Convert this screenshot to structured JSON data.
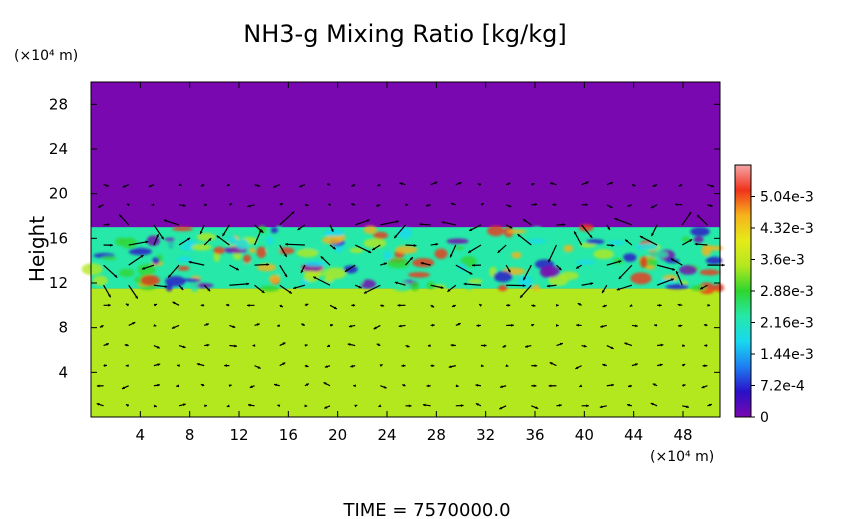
{
  "chart_data": {
    "type": "heatmap",
    "title": "NH3-g Mixing Ratio [kg/kg]",
    "ylabel": "Height",
    "yunit": "(×10⁴ m)",
    "xunit": "(×10⁴ m)",
    "x_ticks": [
      4,
      8,
      12,
      16,
      20,
      24,
      28,
      32,
      36,
      40,
      44,
      48
    ],
    "y_ticks": [
      4,
      8,
      12,
      16,
      20,
      24,
      28
    ],
    "xlim": [
      0,
      51
    ],
    "ylim": [
      0,
      30
    ],
    "colorbar": {
      "ticks": [
        "5.04e-3",
        "4.32e-3",
        "3.6e-3",
        "2.88e-3",
        "2.16e-3",
        "1.44e-3",
        "7.2e-4",
        "0"
      ],
      "tick_values": [
        0.00504,
        0.00432,
        0.0036,
        0.00288,
        0.00216,
        0.00144,
        0.00072,
        0
      ],
      "range": [
        0,
        0.00576
      ],
      "colors": [
        "#7a08b0",
        "#2a10c8",
        "#1e7ef2",
        "#17d9f0",
        "#26e8a8",
        "#2ed62e",
        "#b4e81e",
        "#e6ea19",
        "#f6b31c",
        "#f0321c",
        "#f5a6a6"
      ]
    },
    "regions": [
      {
        "name": "upper",
        "y_range": [
          17,
          30
        ],
        "value": 0
      },
      {
        "name": "cloud layer",
        "y_range": [
          11.5,
          17
        ],
        "value": 0.0025
      },
      {
        "name": "lower",
        "y_range": [
          0,
          11.5
        ],
        "value": 0.0037
      }
    ],
    "grid": false,
    "overlay": "wind vectors"
  },
  "footer": {
    "time_label": "TIME = 7570000.0"
  }
}
